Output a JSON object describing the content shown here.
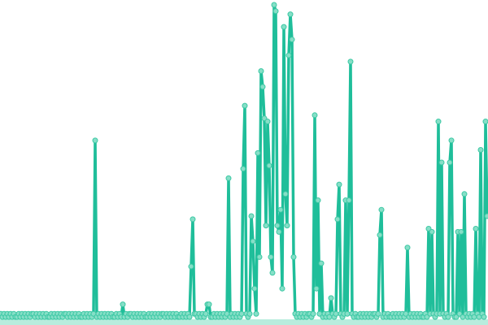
{
  "chart_data": {
    "type": "line",
    "title": "",
    "xlabel": "",
    "ylabel": "",
    "markers": true,
    "grid": false,
    "axes_visible": false,
    "ylim": [
      0,
      100
    ],
    "colors": {
      "line": "#1fbe9a",
      "marker_fill": "#86dfc7",
      "marker_stroke": "#3cc8a4"
    },
    "series": [
      {
        "values": [
          2,
          1,
          2,
          1,
          2,
          1,
          2,
          1,
          2,
          1,
          1,
          2,
          1,
          2,
          1,
          2,
          1,
          2,
          1,
          2,
          2,
          1,
          2,
          1,
          2,
          1,
          2,
          1,
          2,
          1,
          1,
          2,
          1,
          2,
          1,
          2,
          1,
          2,
          1,
          2,
          2,
          1,
          2,
          1,
          2,
          1,
          2,
          1,
          2,
          1,
          1,
          2,
          1,
          2,
          1,
          2,
          1,
          2,
          57,
          1,
          2,
          1,
          2,
          1,
          2,
          1,
          2,
          1,
          2,
          1,
          1,
          2,
          1,
          2,
          1,
          5,
          1,
          2,
          1,
          2,
          2,
          1,
          2,
          1,
          2,
          1,
          2,
          1,
          2,
          1,
          1,
          2,
          1,
          2,
          1,
          2,
          1,
          2,
          1,
          2,
          2,
          1,
          2,
          1,
          2,
          1,
          2,
          1,
          2,
          1,
          1,
          2,
          1,
          2,
          1,
          2,
          1,
          17,
          32,
          2,
          2,
          1,
          2,
          1,
          2,
          1,
          2,
          5,
          5,
          1,
          1,
          2,
          1,
          2,
          1,
          2,
          1,
          2,
          1,
          2,
          45,
          1,
          2,
          1,
          2,
          1,
          2,
          1,
          2,
          48,
          68,
          2,
          1,
          2,
          33,
          25,
          10,
          2,
          53,
          20,
          79,
          74,
          64,
          30,
          63,
          49,
          20,
          15,
          100,
          98,
          30,
          28,
          35,
          10,
          93,
          40,
          30,
          84,
          97,
          89,
          20,
          2,
          1,
          2,
          1,
          2,
          1,
          2,
          1,
          2,
          2,
          1,
          2,
          65,
          10,
          38,
          2,
          18,
          1,
          2,
          1,
          2,
          1,
          7,
          2,
          1,
          2,
          32,
          43,
          2,
          1,
          2,
          38,
          2,
          38,
          82,
          2,
          1,
          2,
          1,
          1,
          2,
          1,
          2,
          1,
          2,
          1,
          2,
          1,
          2,
          2,
          1,
          2,
          27,
          35,
          1,
          2,
          1,
          2,
          1,
          1,
          2,
          1,
          2,
          1,
          2,
          1,
          2,
          1,
          2,
          23,
          1,
          2,
          1,
          2,
          1,
          2,
          1,
          2,
          1,
          1,
          2,
          1,
          29,
          2,
          28,
          2,
          1,
          2,
          63,
          2,
          50,
          2,
          1,
          2,
          1,
          50,
          57,
          2,
          1,
          1,
          28,
          2,
          28,
          1,
          40,
          2,
          1,
          2,
          1,
          2,
          1,
          29,
          2,
          1,
          54,
          2,
          1,
          63,
          33
        ]
      }
    ]
  }
}
